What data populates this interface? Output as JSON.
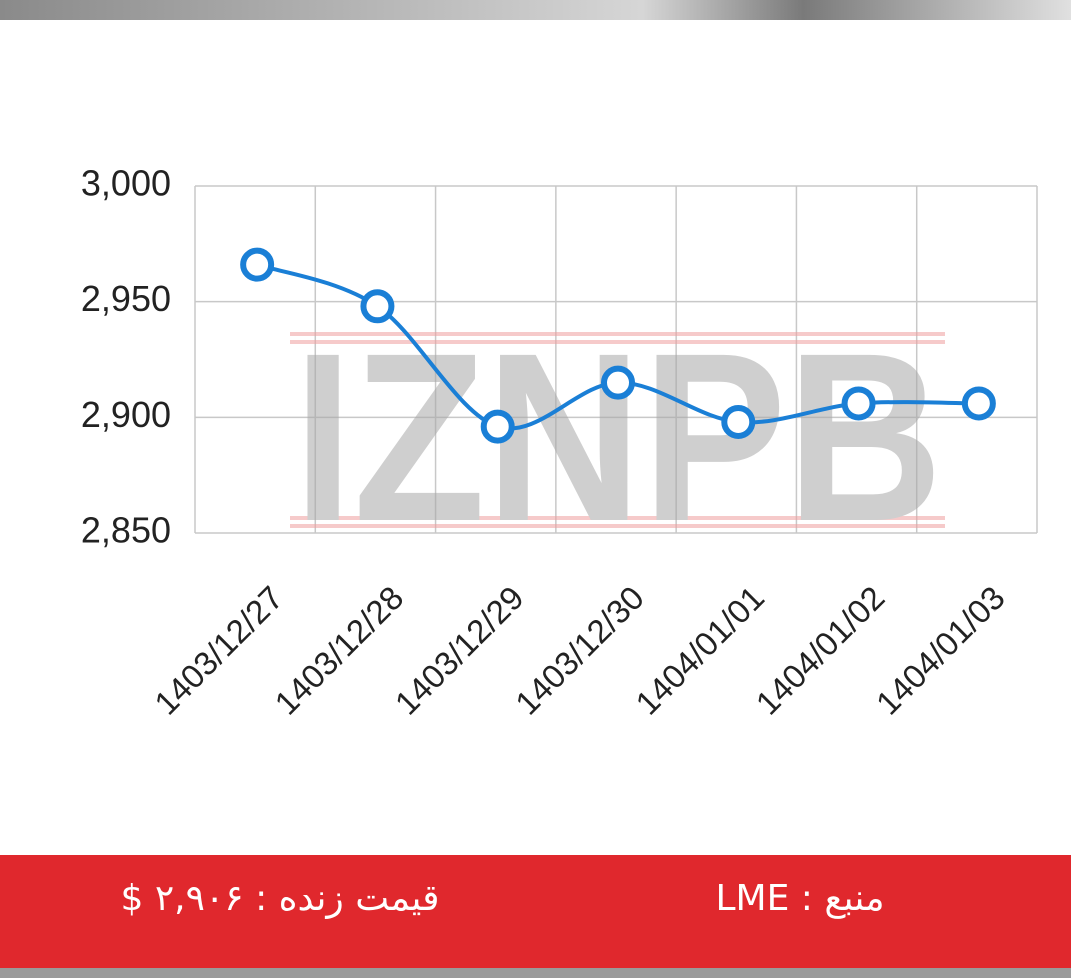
{
  "chart_data": {
    "type": "line",
    "watermark": "IZNPB",
    "categories": [
      "1403/12/27",
      "1403/12/28",
      "1403/12/29",
      "1403/12/30",
      "1404/01/01",
      "1404/01/02",
      "1404/01/03"
    ],
    "series": [
      {
        "color": "#1a7fd6",
        "values": [
          2966,
          2948,
          2896,
          2915,
          2898,
          2906,
          2906
        ]
      }
    ],
    "ylim": [
      2850,
      3000
    ],
    "yticks": [
      {
        "value": 2850,
        "label": "2,850"
      },
      {
        "value": 2900,
        "label": "2,900"
      },
      {
        "value": 2950,
        "label": "2,950"
      },
      {
        "value": 3000,
        "label": "3,000"
      }
    ],
    "grid": true
  },
  "footer": {
    "live_price": "قیمت زنده : ۲,۹۰۶ $",
    "source": "منبع : LME"
  }
}
